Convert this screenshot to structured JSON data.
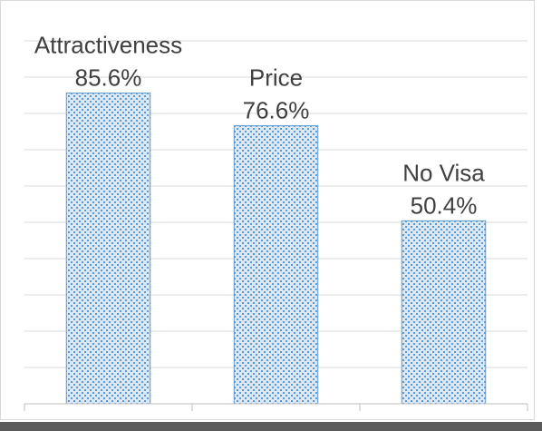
{
  "chart_data": {
    "type": "bar",
    "categories": [
      "Attractiveness",
      "Price",
      "No Visa"
    ],
    "values": [
      85.6,
      76.6,
      50.4
    ],
    "value_labels": [
      "85.6%",
      "76.6%",
      "50.4%"
    ],
    "color": "#5b9bd5",
    "ylim": [
      0,
      100
    ],
    "yticks": [
      0,
      10,
      20,
      30,
      40,
      50,
      60,
      70,
      80,
      90,
      100
    ],
    "grid": true
  }
}
